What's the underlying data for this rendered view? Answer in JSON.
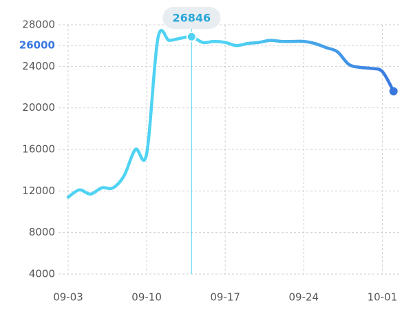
{
  "chart_data": {
    "type": "line",
    "categories": [
      "09-03",
      null,
      null,
      null,
      null,
      null,
      null,
      "09-10",
      null,
      null,
      null,
      null,
      null,
      null,
      "09-17",
      null,
      null,
      null,
      null,
      null,
      null,
      "09-24",
      null,
      null,
      null,
      null,
      null,
      null,
      "10-01",
      null
    ],
    "series": [
      {
        "values": [
          11400,
          12100,
          11700,
          12300,
          12300,
          13500,
          16000,
          15600,
          26700,
          26500,
          26700,
          26846,
          26300,
          26400,
          26300,
          26000,
          26200,
          26300,
          26500,
          26400,
          26400,
          26400,
          26200,
          25800,
          25400,
          24200,
          23900,
          23800,
          23500,
          21600
        ]
      }
    ],
    "color_start": "#50d3f3",
    "color_end": "#3a78e0",
    "ylim": [
      4000,
      28000
    ],
    "yticks": [
      4000,
      8000,
      12000,
      16000,
      20000,
      24000,
      28000
    ],
    "highlight_ytick": 26000,
    "highlight_index": 11,
    "grid": true
  }
}
